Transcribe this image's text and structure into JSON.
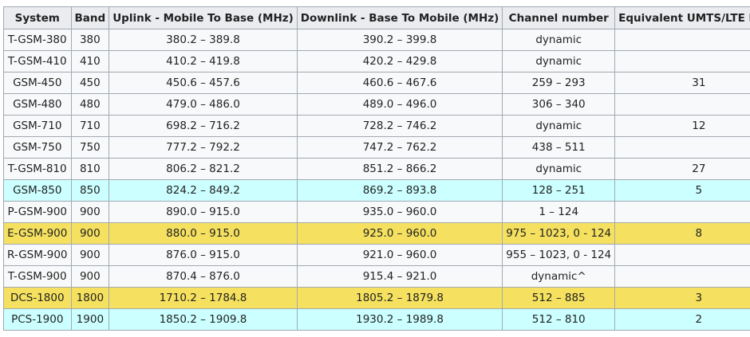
{
  "table": {
    "headers": [
      "System",
      "Band",
      "Uplink - Mobile To Base (MHz)",
      "Downlink - Base To Mobile (MHz)",
      "Channel number",
      "Equivalent UMTS/LTE band"
    ],
    "rows": [
      {
        "highlight": "none",
        "cells": [
          "T-GSM-380",
          "380",
          "380.2 – 389.8",
          "390.2 – 399.8",
          "dynamic",
          ""
        ]
      },
      {
        "highlight": "none",
        "cells": [
          "T-GSM-410",
          "410",
          "410.2 – 419.8",
          "420.2 – 429.8",
          "dynamic",
          ""
        ]
      },
      {
        "highlight": "none",
        "cells": [
          "GSM-450",
          "450",
          "450.6 – 457.6",
          "460.6 – 467.6",
          "259 – 293",
          "31"
        ]
      },
      {
        "highlight": "none",
        "cells": [
          "GSM-480",
          "480",
          "479.0 – 486.0",
          "489.0 – 496.0",
          "306 – 340",
          ""
        ]
      },
      {
        "highlight": "none",
        "cells": [
          "GSM-710",
          "710",
          "698.2 – 716.2",
          "728.2 – 746.2",
          "dynamic",
          "12"
        ]
      },
      {
        "highlight": "none",
        "cells": [
          "GSM-750",
          "750",
          "777.2 – 792.2",
          "747.2 – 762.2",
          "438 – 511",
          ""
        ]
      },
      {
        "highlight": "none",
        "cells": [
          "T-GSM-810",
          "810",
          "806.2 – 821.2",
          "851.2 – 866.2",
          "dynamic",
          "27"
        ]
      },
      {
        "highlight": "cyan",
        "cells": [
          "GSM-850",
          "850",
          "824.2 – 849.2",
          "869.2 – 893.8",
          "128 – 251",
          "5"
        ]
      },
      {
        "highlight": "none",
        "cells": [
          "P-GSM-900",
          "900",
          "890.0 – 915.0",
          "935.0 – 960.0",
          "1 – 124",
          ""
        ]
      },
      {
        "highlight": "yellow",
        "cells": [
          "E-GSM-900",
          "900",
          "880.0 – 915.0",
          "925.0 – 960.0",
          "975 – 1023, 0 - 124",
          "8"
        ]
      },
      {
        "highlight": "none",
        "cells": [
          "R-GSM-900",
          "900",
          "876.0 – 915.0",
          "921.0 – 960.0",
          "955 – 1023, 0 - 124",
          ""
        ]
      },
      {
        "highlight": "none",
        "cells": [
          "T-GSM-900",
          "900",
          "870.4 – 876.0",
          "915.4 – 921.0",
          "dynamic^",
          ""
        ]
      },
      {
        "highlight": "yellow",
        "cells": [
          "DCS-1800",
          "1800",
          "1710.2 – 1784.8",
          "1805.2 – 1879.8",
          "512 – 885",
          "3"
        ]
      },
      {
        "highlight": "cyan",
        "cells": [
          "PCS-1900",
          "1900",
          "1850.2 – 1909.8",
          "1930.2 – 1989.8",
          "512 – 810",
          "2"
        ]
      }
    ]
  },
  "colors": {
    "header_bg": "#eaecf0",
    "row_bg": "#f8f9fa",
    "highlight_cyan": "#ccffff",
    "highlight_yellow": "#f5e15f",
    "border": "#a2a9b1"
  }
}
